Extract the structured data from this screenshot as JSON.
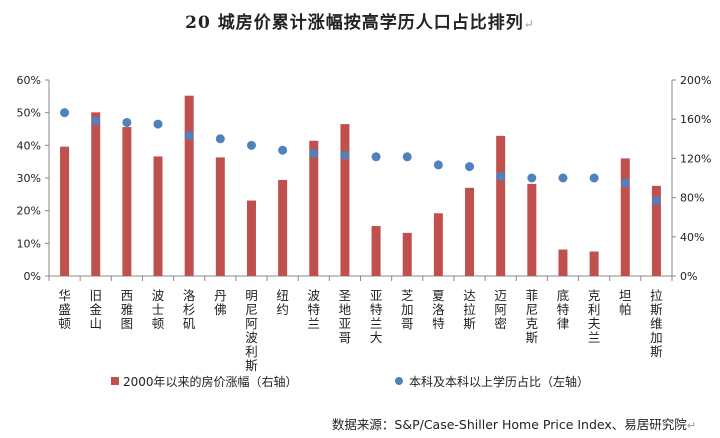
{
  "title": "20 城房价累计涨幅按高学历人口占比排列",
  "title_mark": "↵",
  "source": "数据来源：S&P/Case-Shiller Home Price Index、易居研究院",
  "source_mark": "↵",
  "colors": {
    "bar": "#c0504d",
    "dot": "#4f81bd",
    "axis": "#888888",
    "text": "#222222"
  },
  "chart_data": {
    "type": "bar",
    "categories": [
      "华盛顿",
      "旧金山",
      "西雅图",
      "波士顿",
      "洛杉矶",
      "丹佛",
      "明尼阿波利斯",
      "纽约",
      "波特兰",
      "圣地亚哥",
      "亚特兰大",
      "芝加哥",
      "夏洛特",
      "达拉斯",
      "迈阿密",
      "菲尼克斯",
      "底特律",
      "克利夫兰",
      "坦帕",
      "拉斯维加斯"
    ],
    "y_left": {
      "ticks": [
        "0%",
        "10%",
        "20%",
        "30%",
        "40%",
        "50%",
        "60%"
      ],
      "lim": [
        0,
        60
      ]
    },
    "y_right": {
      "ticks": [
        "0%",
        "40%",
        "80%",
        "120%",
        "160%",
        "200%"
      ],
      "lim": [
        0,
        200
      ]
    },
    "grid": false,
    "legend_position": "bottom",
    "series": [
      {
        "name": "2000年以来的房价涨幅（右轴）",
        "kind": "bar",
        "axis": "right",
        "values": [
          132,
          167,
          152,
          122,
          184,
          121,
          77,
          98,
          138,
          155,
          51,
          44,
          64,
          90,
          143,
          94,
          27,
          25,
          120,
          92
        ]
      },
      {
        "name": "本科及本科以上学历占比（左轴）",
        "kind": "scatter",
        "axis": "left",
        "values": [
          50,
          47.5,
          47,
          46.5,
          43,
          42,
          40,
          38.5,
          37.5,
          37,
          36.5,
          36.5,
          34,
          33.5,
          30.5,
          30,
          30,
          30,
          28.5,
          23
        ]
      }
    ]
  }
}
